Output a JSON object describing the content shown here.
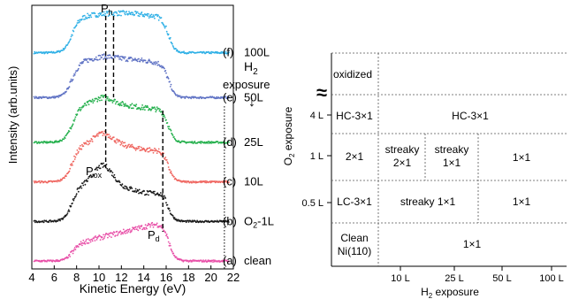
{
  "chart_data": [
    {
      "type": "line",
      "xlabel": "Kinetic Energy (eV)",
      "ylabel": "Intensity (arb.units)",
      "xlim": [
        4,
        22
      ],
      "x_ticks": [
        "4",
        "6",
        "8",
        "10",
        "12",
        "14",
        "16",
        "18",
        "20",
        "22"
      ],
      "legend_title_line1": "H",
      "legend_title_sub": "2",
      "legend_title_line2": "exposure",
      "legend_arrow": "↓",
      "markers": {
        "Ph": "P",
        "Ph_sub": "h",
        "Pox": "P",
        "Pox_sub": "ox",
        "Pd": "P",
        "Pd_sub": "d"
      },
      "marker_positions_eV": {
        "Ph_left": 10.6,
        "Ph_right": 11.3,
        "Pd": 15.7,
        "dotted": 21.2
      },
      "series": [
        {
          "label": "(f)",
          "name": "100L",
          "color": "#2fb0e6",
          "offset": 0.82,
          "peak_x": 11.8,
          "pd": 0.0,
          "pox": 0.0
        },
        {
          "label": "(e)",
          "name": "50L",
          "color": "#5f72c4",
          "offset": 0.65,
          "peak_x": 11.5,
          "pd": 0.0,
          "pox": 0.05
        },
        {
          "label": "(d)",
          "name": "25L",
          "color": "#25b04d",
          "offset": 0.48,
          "peak_x": 11.0,
          "pd": 0.02,
          "pox": 0.15
        },
        {
          "label": "(c)",
          "name": "10L",
          "color": "#ef6660",
          "offset": 0.33,
          "peak_x": 10.8,
          "pd": 0.03,
          "pox": 0.25
        },
        {
          "label": "(b)",
          "name": "O2-1L",
          "name_parts": [
            "O",
            "2",
            "-1L"
          ],
          "color": "#1a1a1a",
          "offset": 0.18,
          "peak_x": 10.5,
          "pd": 0.08,
          "pox": 0.45
        },
        {
          "label": "(a)",
          "name": "clean",
          "color": "#e850a8",
          "offset": 0.03,
          "peak_x": 15.5,
          "pd": 0.0,
          "pox": 0.0
        }
      ]
    },
    {
      "type": "table",
      "xlabel": "H2 exposure",
      "xlabel_parts": [
        "H",
        "2",
        " exposure"
      ],
      "ylabel": "O2 exposure",
      "ylabel_parts": [
        "O",
        "2",
        " exposure"
      ],
      "x_ticks": [
        "10 L",
        "25 L",
        "50 L",
        "100 L"
      ],
      "y_ticks": [
        "4 L",
        "1 L",
        "0.5 L"
      ],
      "break_symbol": "≈",
      "cells": {
        "oxidized": "oxidized",
        "hc_left": "HC-3×1",
        "hc_right": "HC-3×1",
        "r1_left": "2×1",
        "r1_streaky2_line1": "streaky",
        "r1_streaky2_line2": "2×1",
        "r1_streaky1_line1": "streaky",
        "r1_streaky1_line2": "1×1",
        "r1_right": "1×1",
        "lc_left": "LC-3×1",
        "lc_mid": "streaky 1×1",
        "lc_right": "1×1",
        "clean_line1": "Clean",
        "clean_line2": "Ni(110)",
        "clean_right": "1×1"
      }
    }
  ]
}
